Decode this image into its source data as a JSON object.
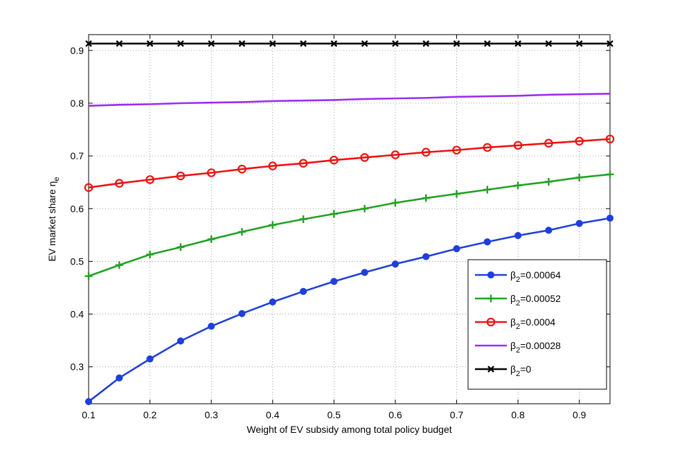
{
  "chart_data": {
    "type": "line",
    "title": "",
    "xlabel": "Weight of EV subsidy among total policy budget",
    "ylabel": "EV market share ηe",
    "ylabel_main": "EV market share η",
    "ylabel_sub": "e",
    "xlim": [
      0.1,
      0.95
    ],
    "ylim": [
      0.23,
      0.93
    ],
    "xticks": [
      "0.1",
      "0.2",
      "0.3",
      "0.4",
      "0.5",
      "0.6",
      "0.7",
      "0.8",
      "0.9"
    ],
    "yticks": [
      "0.3",
      "0.4",
      "0.5",
      "0.6",
      "0.7",
      "0.8",
      "0.9"
    ],
    "grid": true,
    "legend_position": "bottom-right",
    "x": [
      0.1,
      0.15,
      0.2,
      0.25,
      0.3,
      0.35,
      0.4,
      0.45,
      0.5,
      0.55,
      0.6,
      0.65,
      0.7,
      0.75,
      0.8,
      0.85,
      0.9,
      0.95
    ],
    "series": [
      {
        "name": "β2=0.00064",
        "name_main": "β",
        "name_sub": "2",
        "name_rest": "=0.00064",
        "color": "#1f3fdc",
        "marker": "circle-filled",
        "values": [
          0.234,
          0.279,
          0.315,
          0.349,
          0.377,
          0.401,
          0.423,
          0.443,
          0.462,
          0.479,
          0.495,
          0.509,
          0.524,
          0.537,
          0.549,
          0.559,
          0.572,
          0.582
        ]
      },
      {
        "name": "β2=0.00052",
        "name_main": "β",
        "name_sub": "2",
        "name_rest": "=0.00052",
        "color": "#22a122",
        "marker": "plus",
        "values": [
          0.472,
          0.493,
          0.513,
          0.527,
          0.542,
          0.556,
          0.569,
          0.58,
          0.59,
          0.6,
          0.611,
          0.62,
          0.628,
          0.636,
          0.644,
          0.651,
          0.659,
          0.665
        ]
      },
      {
        "name": "β2=0.0004",
        "name_main": "β",
        "name_sub": "2",
        "name_rest": "=0.0004",
        "color": "#ee1111",
        "marker": "circle-open",
        "values": [
          0.64,
          0.648,
          0.655,
          0.662,
          0.668,
          0.675,
          0.681,
          0.686,
          0.692,
          0.697,
          0.702,
          0.707,
          0.711,
          0.716,
          0.72,
          0.724,
          0.728,
          0.732
        ]
      },
      {
        "name": "β2=0.00028",
        "name_main": "β",
        "name_sub": "2",
        "name_rest": "=0.00028",
        "color": "#9b2cf0",
        "marker": "none",
        "values": [
          0.795,
          0.797,
          0.798,
          0.8,
          0.801,
          0.802,
          0.804,
          0.805,
          0.806,
          0.808,
          0.809,
          0.81,
          0.812,
          0.813,
          0.814,
          0.816,
          0.817,
          0.818
        ]
      },
      {
        "name": "β2=0",
        "name_main": "β",
        "name_sub": "2",
        "name_rest": "=0",
        "color": "#000000",
        "marker": "x",
        "values": [
          0.913,
          0.913,
          0.913,
          0.913,
          0.913,
          0.913,
          0.913,
          0.913,
          0.913,
          0.913,
          0.913,
          0.913,
          0.913,
          0.913,
          0.913,
          0.913,
          0.913,
          0.913
        ]
      }
    ]
  }
}
